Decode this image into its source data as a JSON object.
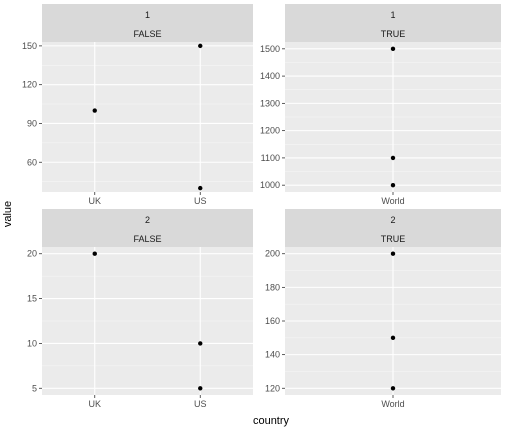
{
  "chart_data": {
    "type": "scatter",
    "xlabel": "country",
    "ylabel": "value",
    "panel_background": "#ebebeb",
    "strip_background": "#d9d9d9",
    "point_color": "#000000",
    "facets": [
      {
        "strip_top": "1",
        "strip_bottom": "FALSE",
        "categories": [
          "UK",
          "US"
        ],
        "points": [
          {
            "x": "UK",
            "y": 100
          },
          {
            "x": "US",
            "y": 150
          },
          {
            "x": "US",
            "y": 40
          }
        ],
        "ylim": [
          37,
          153
        ],
        "yticks": [
          60,
          90,
          120,
          150
        ]
      },
      {
        "strip_top": "1",
        "strip_bottom": "TRUE",
        "categories": [
          "World"
        ],
        "points": [
          {
            "x": "World",
            "y": 1500
          },
          {
            "x": "World",
            "y": 1100
          },
          {
            "x": "World",
            "y": 1000
          }
        ],
        "ylim": [
          975,
          1525
        ],
        "yticks": [
          1000,
          1100,
          1200,
          1300,
          1400,
          1500
        ]
      },
      {
        "strip_top": "2",
        "strip_bottom": "FALSE",
        "categories": [
          "UK",
          "US"
        ],
        "points": [
          {
            "x": "UK",
            "y": 20
          },
          {
            "x": "US",
            "y": 10
          },
          {
            "x": "US",
            "y": 5
          }
        ],
        "ylim": [
          4.25,
          20.75
        ],
        "yticks": [
          5,
          10,
          15,
          20
        ]
      },
      {
        "strip_top": "2",
        "strip_bottom": "TRUE",
        "categories": [
          "World"
        ],
        "points": [
          {
            "x": "World",
            "y": 200
          },
          {
            "x": "World",
            "y": 150
          },
          {
            "x": "World",
            "y": 120
          }
        ],
        "ylim": [
          116,
          204
        ],
        "yticks": [
          120,
          140,
          160,
          180,
          200
        ]
      }
    ]
  }
}
